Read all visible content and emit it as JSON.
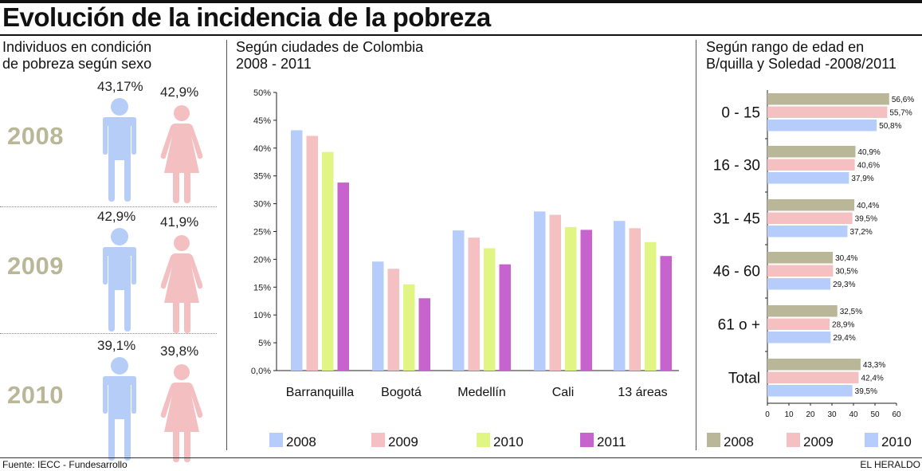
{
  "title": "Evolución de la incidencia de la pobreza",
  "colors": {
    "man": "#b5cdf7",
    "woman": "#f4bfc1",
    "year_text": "#b9b797",
    "2008": "#b6ccfb",
    "2009": "#f5c0c1",
    "2010": "#e0f584",
    "2011": "#c763cd",
    "age_2008": "#b9b797",
    "age_2009": "#f5c0c1",
    "age_2010": "#b6ccfb"
  },
  "sex_panel": {
    "title": "Individuos en condición\nde pobreza según sexo",
    "rows": [
      {
        "year": "2008",
        "men": "43,17%",
        "women": "42,9%"
      },
      {
        "year": "2009",
        "men": "42,9%",
        "women": "41,9%"
      },
      {
        "year": "2010",
        "men": "39,1%",
        "women": "39,8%"
      }
    ],
    "icons": {
      "man": "man-icon",
      "woman": "woman-icon"
    }
  },
  "chart_data": [
    {
      "type": "bar",
      "title": "Según ciudades de Colombia\n2008 - 2011",
      "categories": [
        "Barranquilla",
        "Bogotá",
        "Medellín",
        "Cali",
        "13 áreas"
      ],
      "series": [
        {
          "name": "2008",
          "values": [
            43.2,
            19.6,
            25.2,
            28.6,
            26.9
          ]
        },
        {
          "name": "2009",
          "values": [
            42.2,
            18.3,
            23.9,
            28.0,
            25.6
          ]
        },
        {
          "name": "2010",
          "values": [
            39.3,
            15.5,
            22.0,
            25.8,
            23.1
          ]
        },
        {
          "name": "2011",
          "values": [
            33.8,
            13.0,
            19.1,
            25.3,
            20.6
          ]
        }
      ],
      "yticks": [
        "0,0%",
        "5%",
        "10%",
        "15%",
        "20%",
        "25%",
        "30%",
        "35%",
        "40%",
        "45%",
        "50%"
      ],
      "ylim": [
        0,
        50
      ],
      "grid": false,
      "legend": "bottom"
    },
    {
      "type": "bar",
      "orientation": "horizontal",
      "title": "Según rango de edad en\nB/quilla y Soledad -2008/2011",
      "categories": [
        "0 - 15",
        "16 - 30",
        "31 - 45",
        "46 - 60",
        "61 o +",
        "Total"
      ],
      "series": [
        {
          "name": "2008",
          "values": [
            56.6,
            40.9,
            40.4,
            30.4,
            32.5,
            43.3
          ],
          "labels": [
            "56,6%",
            "40,9%",
            "40,4%",
            "30,4%",
            "32,5%",
            "43,3%"
          ]
        },
        {
          "name": "2009",
          "values": [
            55.7,
            40.6,
            39.5,
            30.5,
            28.9,
            42.4
          ],
          "labels": [
            "55,7%",
            "40,6%",
            "39,5%",
            "30,5%",
            "28,9%",
            "42,4%"
          ]
        },
        {
          "name": "2010",
          "values": [
            50.8,
            37.9,
            37.2,
            29.3,
            29.4,
            39.5
          ],
          "labels": [
            "50,8%",
            "37,9%",
            "37,2%",
            "29,3%",
            "29,4%",
            "39,5%"
          ]
        }
      ],
      "xticks": [
        "0",
        "10",
        "20",
        "30",
        "40",
        "50",
        "60"
      ],
      "xlim": [
        0,
        60
      ],
      "grid": false,
      "legend": "bottom"
    }
  ],
  "footer": {
    "source": "Fuente: IECC - Fundesarrollo",
    "publisher": "EL HERALDO"
  }
}
